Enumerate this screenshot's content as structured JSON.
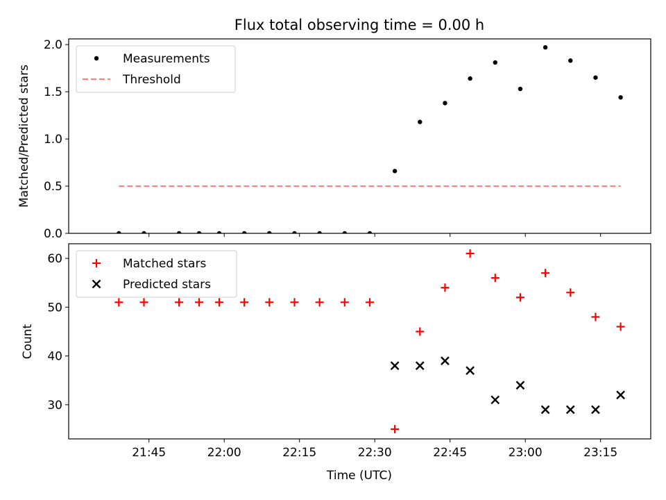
{
  "chart_data": [
    {
      "type": "scatter",
      "title": "Flux total observing time = 0.00 h",
      "xlabel": "",
      "ylabel": "Matched/Predicted stars",
      "ylim": [
        0,
        2.06
      ],
      "xlim": [
        "21:29",
        "23:25"
      ],
      "yticks": [
        "0.0",
        "0.5",
        "1.0",
        "1.5",
        "2.0"
      ],
      "legend_position": "top-left",
      "series": [
        {
          "name": "Measurements",
          "marker": "dot",
          "color": "#000000",
          "points": [
            [
              "21:39",
              0
            ],
            [
              "21:44",
              0
            ],
            [
              "21:51",
              0
            ],
            [
              "21:55",
              0
            ],
            [
              "21:59",
              0
            ],
            [
              "22:04",
              0
            ],
            [
              "22:09",
              0
            ],
            [
              "22:14",
              0
            ],
            [
              "22:19",
              0
            ],
            [
              "22:24",
              0
            ],
            [
              "22:29",
              0
            ],
            [
              "22:34",
              0.66
            ],
            [
              "22:39",
              1.18
            ],
            [
              "22:44",
              1.38
            ],
            [
              "22:49",
              1.64
            ],
            [
              "22:54",
              1.81
            ],
            [
              "22:59",
              1.53
            ],
            [
              "23:04",
              1.97
            ],
            [
              "23:09",
              1.83
            ],
            [
              "23:14",
              1.65
            ],
            [
              "23:19",
              1.44
            ]
          ]
        },
        {
          "name": "Threshold",
          "marker": "dashed-line",
          "color": "#ff7f7f",
          "points": [
            [
              "21:39",
              0.5
            ],
            [
              "23:19",
              0.5
            ]
          ]
        }
      ]
    },
    {
      "type": "scatter",
      "title": "",
      "xlabel": "Time (UTC)",
      "ylabel": "Count",
      "ylim": [
        23,
        63
      ],
      "xlim": [
        "21:29",
        "23:25"
      ],
      "yticks": [
        "30",
        "40",
        "50",
        "60"
      ],
      "xticks": [
        "21:45",
        "22:00",
        "22:15",
        "22:30",
        "22:45",
        "23:00",
        "23:15"
      ],
      "legend_position": "top-left",
      "series": [
        {
          "name": "Matched stars",
          "marker": "plus",
          "color": "#ff0000",
          "points": [
            [
              "21:39",
              51
            ],
            [
              "21:44",
              51
            ],
            [
              "21:51",
              51
            ],
            [
              "21:55",
              51
            ],
            [
              "21:59",
              51
            ],
            [
              "22:04",
              51
            ],
            [
              "22:09",
              51
            ],
            [
              "22:14",
              51
            ],
            [
              "22:19",
              51
            ],
            [
              "22:24",
              51
            ],
            [
              "22:29",
              51
            ],
            [
              "22:34",
              25
            ],
            [
              "22:39",
              45
            ],
            [
              "22:44",
              54
            ],
            [
              "22:49",
              61
            ],
            [
              "22:54",
              56
            ],
            [
              "22:59",
              52
            ],
            [
              "23:04",
              57
            ],
            [
              "23:09",
              53
            ],
            [
              "23:14",
              48
            ],
            [
              "23:19",
              46
            ]
          ]
        },
        {
          "name": "Predicted stars",
          "marker": "x",
          "color": "#000000",
          "points": [
            [
              "22:34",
              38
            ],
            [
              "22:39",
              38
            ],
            [
              "22:44",
              39
            ],
            [
              "22:49",
              37
            ],
            [
              "22:54",
              31
            ],
            [
              "22:59",
              34
            ],
            [
              "23:04",
              29
            ],
            [
              "23:09",
              29
            ],
            [
              "23:14",
              29
            ],
            [
              "23:19",
              32
            ]
          ]
        }
      ]
    }
  ]
}
